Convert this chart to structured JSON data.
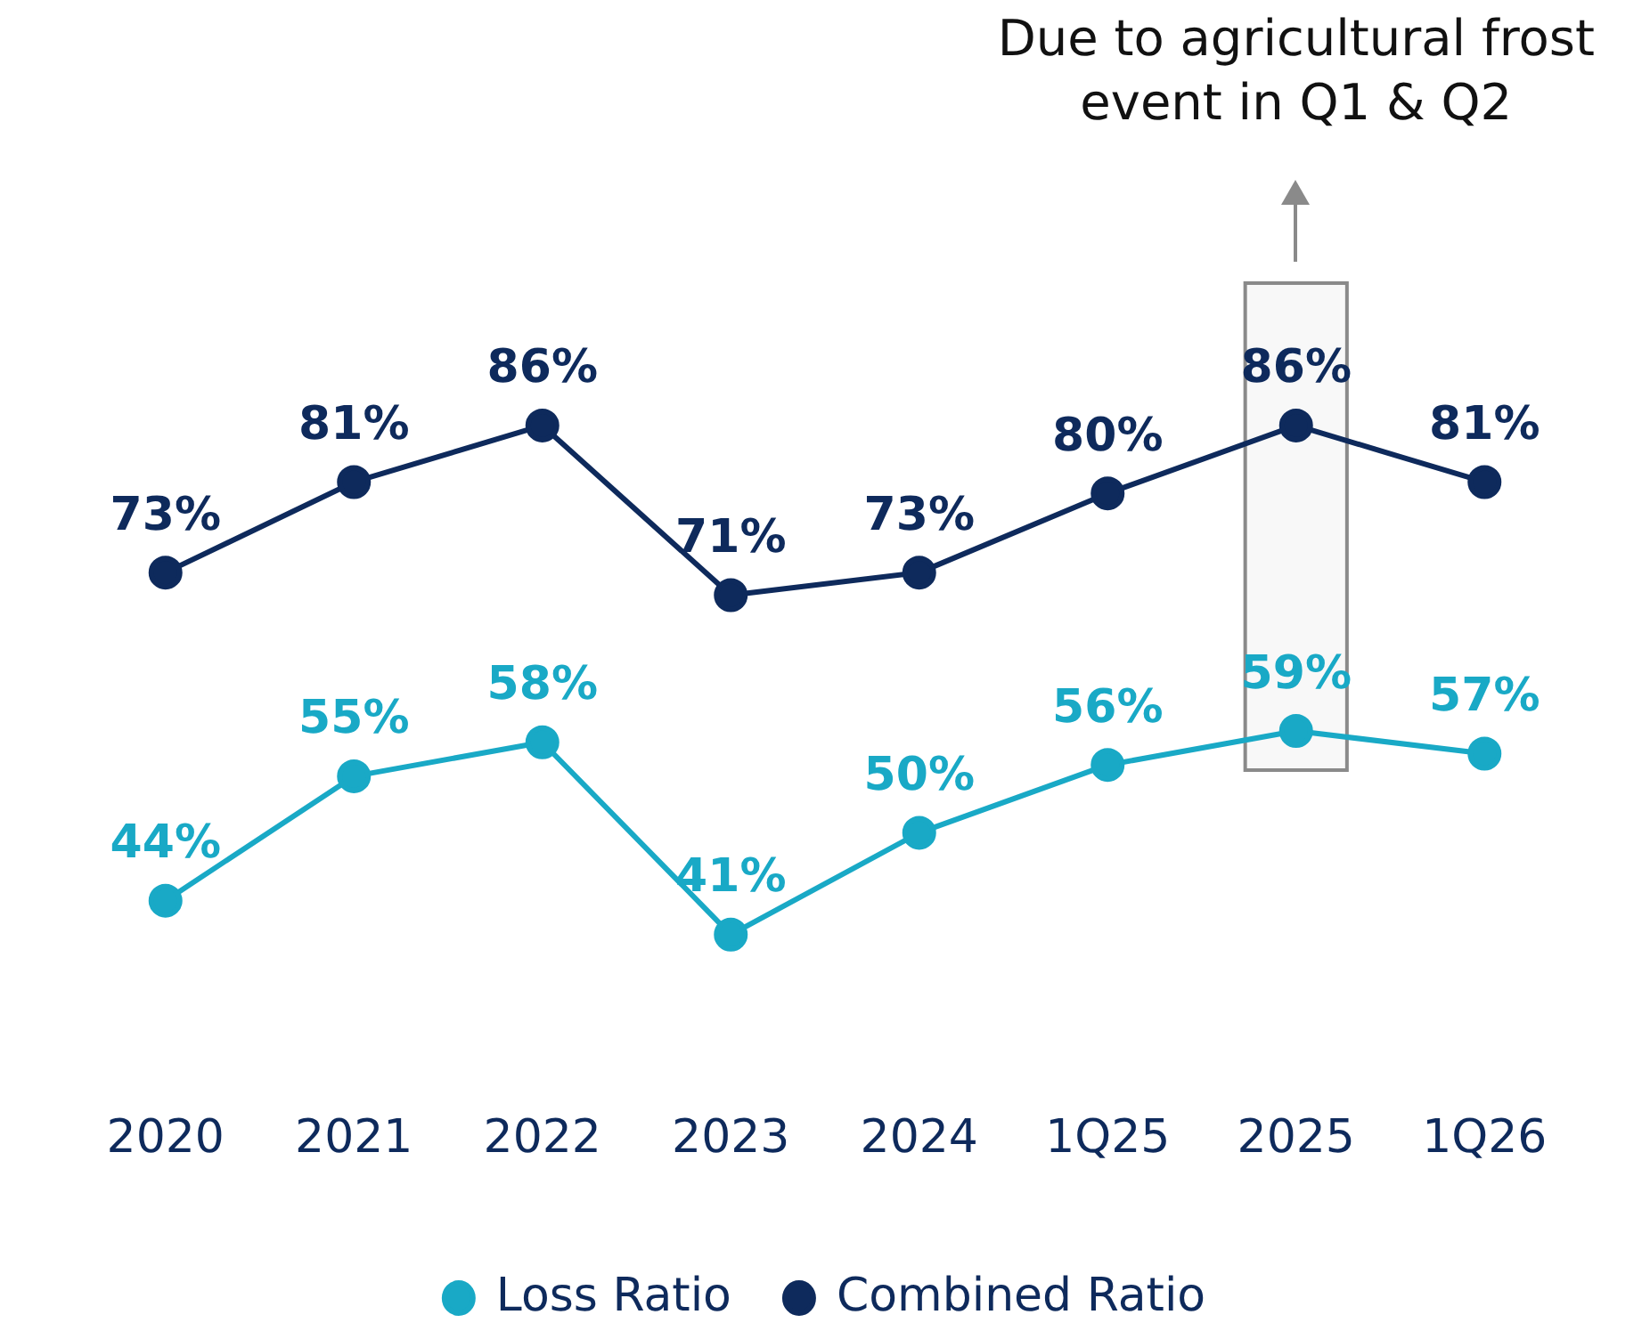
{
  "chart_data": {
    "type": "line",
    "categories": [
      "2020",
      "2021",
      "2022",
      "2023",
      "2024",
      "1Q25",
      "2025",
      "1Q26"
    ],
    "series": [
      {
        "name": "Loss Ratio",
        "color": "#19a9c6",
        "values": [
          44,
          55,
          58,
          41,
          50,
          56,
          59,
          57
        ],
        "value_labels": [
          "44%",
          "55%",
          "58%",
          "41%",
          "50%",
          "56%",
          "59%",
          "57%"
        ]
      },
      {
        "name": "Combined Ratio",
        "color": "#0e2a5c",
        "values": [
          73,
          81,
          86,
          71,
          73,
          80,
          86,
          81
        ],
        "value_labels": [
          "73%",
          "81%",
          "86%",
          "71%",
          "73%",
          "80%",
          "86%",
          "81%"
        ]
      }
    ],
    "tick_labels": "x",
    "grid": false,
    "legend": "bottom",
    "marker": "circle",
    "line_style": "solid",
    "bands": [
      {
        "axis": "x",
        "from": "2025",
        "to": "2025",
        "color": "#8a8a8a"
      }
    ],
    "annotations": [
      "Due to agricultural frost event in Q1 & Q2"
    ]
  }
}
